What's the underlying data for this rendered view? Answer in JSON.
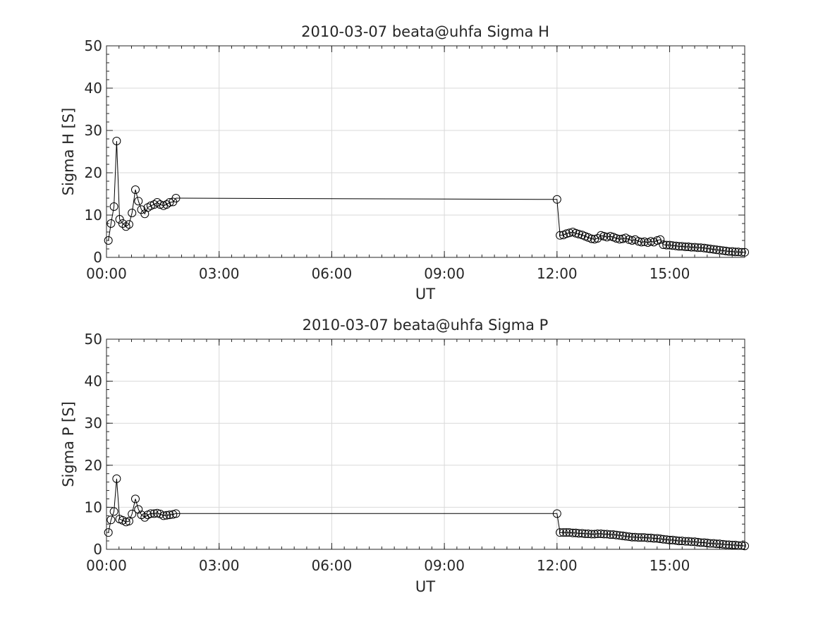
{
  "colors": {
    "line": "#000000",
    "grid": "#d9d9d9",
    "axis": "#262626",
    "marker_edge": "#000000"
  },
  "marker": "open-circle",
  "chart_data": [
    {
      "type": "line",
      "title": "2010-03-07  beata@uhfa Sigma H",
      "xlabel": "UT",
      "ylabel": "Sigma H [S]",
      "xlim": [
        0,
        17
      ],
      "ylim": [
        0,
        50
      ],
      "xticks": [
        0,
        3,
        6,
        9,
        12,
        15
      ],
      "xtick_labels": [
        "00:00",
        "03:00",
        "06:00",
        "09:00",
        "12:00",
        "15:00"
      ],
      "yticks": [
        0,
        10,
        20,
        30,
        40,
        50
      ],
      "ytick_labels": [
        "0",
        "10",
        "20",
        "30",
        "40",
        "50"
      ],
      "grid": true,
      "series": [
        {
          "x": [
            0.05,
            0.12,
            0.2,
            0.27,
            0.35,
            0.43,
            0.52,
            0.6,
            0.68,
            0.77,
            0.85,
            0.93,
            1.02,
            1.1,
            1.18,
            1.27,
            1.35,
            1.43,
            1.52,
            1.6,
            1.68,
            1.77,
            1.85,
            12.0,
            12.08,
            12.17,
            12.25,
            12.33,
            12.42,
            12.5,
            12.58,
            12.67,
            12.75,
            12.83,
            12.92,
            13.0,
            13.08,
            13.17,
            13.25,
            13.33,
            13.42,
            13.5,
            13.58,
            13.67,
            13.75,
            13.83,
            13.92,
            14.0,
            14.08,
            14.17,
            14.25,
            14.33,
            14.42,
            14.5,
            14.58,
            14.67,
            14.75,
            14.83,
            14.92,
            15.0,
            15.08,
            15.17,
            15.25,
            15.33,
            15.42,
            15.5,
            15.58,
            15.67,
            15.75,
            15.83,
            15.92,
            16.0,
            16.08,
            16.17,
            16.25,
            16.33,
            16.42,
            16.5,
            16.58,
            16.67,
            16.75,
            16.83,
            16.92,
            17.0
          ],
          "y": [
            4,
            8,
            12,
            27.5,
            9,
            8,
            7.3,
            7.8,
            10.5,
            16,
            13.3,
            11.3,
            10.3,
            11.8,
            12.2,
            12.5,
            13,
            12.5,
            12.2,
            12.5,
            13,
            13.1,
            14,
            13.7,
            5.2,
            5.3,
            5.6,
            5.8,
            6.0,
            5.7,
            5.5,
            5.3,
            5.0,
            4.7,
            4.4,
            4.3,
            4.5,
            5.2,
            5.0,
            4.8,
            5.0,
            4.8,
            4.5,
            4.3,
            4.4,
            4.6,
            4.2,
            4.0,
            4.2,
            3.8,
            3.6,
            3.7,
            3.5,
            3.8,
            3.6,
            4.0,
            4.2,
            3.0,
            2.9,
            2.9,
            2.8,
            2.7,
            2.6,
            2.6,
            2.5,
            2.5,
            2.4,
            2.4,
            2.3,
            2.3,
            2.2,
            2.1,
            2.0,
            1.9,
            1.8,
            1.7,
            1.6,
            1.5,
            1.4,
            1.4,
            1.3,
            1.3,
            1.2,
            1.2
          ]
        }
      ]
    },
    {
      "type": "line",
      "title": "2010-03-07  beata@uhfa Sigma P",
      "xlabel": "UT",
      "ylabel": "Sigma P [S]",
      "xlim": [
        0,
        17
      ],
      "ylim": [
        0,
        50
      ],
      "xticks": [
        0,
        3,
        6,
        9,
        12,
        15
      ],
      "xtick_labels": [
        "00:00",
        "03:00",
        "06:00",
        "09:00",
        "12:00",
        "15:00"
      ],
      "yticks": [
        0,
        10,
        20,
        30,
        40,
        50
      ],
      "ytick_labels": [
        "0",
        "10",
        "20",
        "30",
        "40",
        "50"
      ],
      "grid": true,
      "series": [
        {
          "x": [
            0.05,
            0.12,
            0.2,
            0.27,
            0.35,
            0.43,
            0.52,
            0.6,
            0.68,
            0.77,
            0.85,
            0.93,
            1.02,
            1.1,
            1.18,
            1.27,
            1.35,
            1.43,
            1.52,
            1.6,
            1.68,
            1.77,
            1.85,
            12.0,
            12.08,
            12.17,
            12.25,
            12.33,
            12.42,
            12.5,
            12.58,
            12.67,
            12.75,
            12.83,
            12.92,
            13.0,
            13.08,
            13.17,
            13.25,
            13.33,
            13.42,
            13.5,
            13.58,
            13.67,
            13.75,
            13.83,
            13.92,
            14.0,
            14.08,
            14.17,
            14.25,
            14.33,
            14.42,
            14.5,
            14.58,
            14.67,
            14.75,
            14.83,
            14.92,
            15.0,
            15.08,
            15.17,
            15.25,
            15.33,
            15.42,
            15.5,
            15.58,
            15.67,
            15.75,
            15.83,
            15.92,
            16.0,
            16.08,
            16.17,
            16.25,
            16.33,
            16.42,
            16.5,
            16.58,
            16.67,
            16.75,
            16.83,
            16.92,
            17.0
          ],
          "y": [
            4,
            7,
            9,
            16.8,
            7.2,
            6.9,
            6.5,
            6.7,
            8.4,
            12,
            9.5,
            8.2,
            7.6,
            8.2,
            8.5,
            8.5,
            8.6,
            8.4,
            8.0,
            8.1,
            8.2,
            8.3,
            8.5,
            8.5,
            4.0,
            4.0,
            4.0,
            4.0,
            3.9,
            3.9,
            3.8,
            3.8,
            3.7,
            3.7,
            3.6,
            3.6,
            3.7,
            3.7,
            3.6,
            3.6,
            3.5,
            3.5,
            3.4,
            3.3,
            3.2,
            3.1,
            3.0,
            2.9,
            2.9,
            2.8,
            2.8,
            2.8,
            2.7,
            2.7,
            2.6,
            2.6,
            2.5,
            2.4,
            2.3,
            2.2,
            2.2,
            2.1,
            2.0,
            2.0,
            1.9,
            1.9,
            1.8,
            1.8,
            1.7,
            1.6,
            1.6,
            1.5,
            1.4,
            1.4,
            1.3,
            1.3,
            1.2,
            1.1,
            1.1,
            1.0,
            1.0,
            0.9,
            0.9,
            0.8
          ]
        }
      ]
    }
  ]
}
